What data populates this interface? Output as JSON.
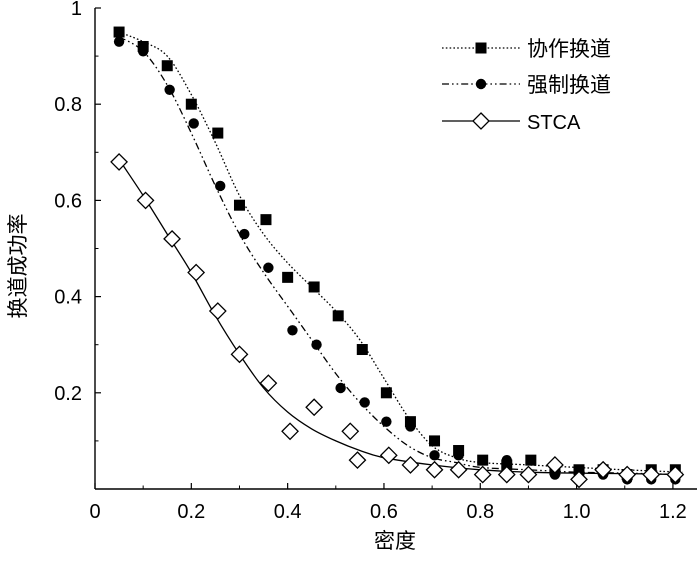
{
  "chart_data": {
    "type": "scatter",
    "title": "",
    "xlabel": "密度",
    "ylabel": "换道成功率",
    "xlim": [
      0,
      1.25
    ],
    "ylim": [
      0,
      1
    ],
    "xticks": [
      0,
      0.2,
      0.4,
      0.6,
      0.8,
      1.0,
      1.2
    ],
    "xtick_labels": [
      "0",
      "0.2",
      "0.4",
      "0.6",
      "0.8",
      "1.0",
      "1.2"
    ],
    "yticks": [
      0.2,
      0.4,
      0.6,
      0.8,
      1
    ],
    "ytick_labels": [
      "0.2",
      "0.4",
      "0.6",
      "0.8",
      "1"
    ],
    "grid": false,
    "legend_position": "top-right",
    "series": [
      {
        "name": "协作换道",
        "marker": "filled-square",
        "line_style": "dotted",
        "points": [
          [
            0.05,
            0.95
          ],
          [
            0.1,
            0.92
          ],
          [
            0.15,
            0.88
          ],
          [
            0.2,
            0.8
          ],
          [
            0.255,
            0.74
          ],
          [
            0.3,
            0.59
          ],
          [
            0.355,
            0.56
          ],
          [
            0.4,
            0.44
          ],
          [
            0.455,
            0.42
          ],
          [
            0.505,
            0.36
          ],
          [
            0.555,
            0.29
          ],
          [
            0.605,
            0.2
          ],
          [
            0.655,
            0.14
          ],
          [
            0.705,
            0.1
          ],
          [
            0.755,
            0.08
          ],
          [
            0.805,
            0.06
          ],
          [
            0.855,
            0.05
          ],
          [
            0.905,
            0.06
          ],
          [
            0.955,
            0.04
          ],
          [
            1.005,
            0.04
          ],
          [
            1.055,
            0.04
          ],
          [
            1.105,
            0.03
          ],
          [
            1.155,
            0.04
          ],
          [
            1.205,
            0.04
          ]
        ],
        "curve": [
          [
            0.05,
            0.95
          ],
          [
            0.1,
            0.93
          ],
          [
            0.15,
            0.9
          ],
          [
            0.2,
            0.82
          ],
          [
            0.25,
            0.72
          ],
          [
            0.3,
            0.61
          ],
          [
            0.35,
            0.53
          ],
          [
            0.4,
            0.47
          ],
          [
            0.45,
            0.42
          ],
          [
            0.5,
            0.37
          ],
          [
            0.55,
            0.31
          ],
          [
            0.6,
            0.23
          ],
          [
            0.65,
            0.15
          ],
          [
            0.7,
            0.09
          ],
          [
            0.75,
            0.065
          ],
          [
            0.8,
            0.055
          ],
          [
            0.9,
            0.05
          ],
          [
            1.0,
            0.045
          ],
          [
            1.1,
            0.04
          ],
          [
            1.22,
            0.035
          ]
        ]
      },
      {
        "name": "强制换道",
        "marker": "filled-circle",
        "line_style": "dash-dot-dot",
        "points": [
          [
            0.05,
            0.93
          ],
          [
            0.1,
            0.91
          ],
          [
            0.155,
            0.83
          ],
          [
            0.205,
            0.76
          ],
          [
            0.26,
            0.63
          ],
          [
            0.31,
            0.53
          ],
          [
            0.36,
            0.46
          ],
          [
            0.41,
            0.33
          ],
          [
            0.46,
            0.3
          ],
          [
            0.51,
            0.21
          ],
          [
            0.56,
            0.18
          ],
          [
            0.605,
            0.14
          ],
          [
            0.655,
            0.13
          ],
          [
            0.705,
            0.07
          ],
          [
            0.755,
            0.07
          ],
          [
            0.805,
            0.03
          ],
          [
            0.855,
            0.06
          ],
          [
            0.905,
            0.06
          ],
          [
            0.955,
            0.03
          ],
          [
            1.005,
            0.03
          ],
          [
            1.055,
            0.03
          ],
          [
            1.105,
            0.02
          ],
          [
            1.155,
            0.02
          ],
          [
            1.205,
            0.02
          ]
        ],
        "curve": [
          [
            0.05,
            0.94
          ],
          [
            0.1,
            0.91
          ],
          [
            0.15,
            0.84
          ],
          [
            0.2,
            0.74
          ],
          [
            0.25,
            0.63
          ],
          [
            0.3,
            0.53
          ],
          [
            0.35,
            0.45
          ],
          [
            0.4,
            0.38
          ],
          [
            0.45,
            0.31
          ],
          [
            0.5,
            0.24
          ],
          [
            0.55,
            0.18
          ],
          [
            0.6,
            0.13
          ],
          [
            0.65,
            0.09
          ],
          [
            0.7,
            0.065
          ],
          [
            0.75,
            0.055
          ],
          [
            0.8,
            0.045
          ],
          [
            0.9,
            0.04
          ],
          [
            1.0,
            0.035
          ],
          [
            1.1,
            0.033
          ],
          [
            1.22,
            0.03
          ]
        ]
      },
      {
        "name": "STCA",
        "marker": "open-diamond",
        "line_style": "solid",
        "points": [
          [
            0.05,
            0.68
          ],
          [
            0.105,
            0.6
          ],
          [
            0.16,
            0.52
          ],
          [
            0.21,
            0.45
          ],
          [
            0.255,
            0.37
          ],
          [
            0.3,
            0.28
          ],
          [
            0.36,
            0.22
          ],
          [
            0.405,
            0.12
          ],
          [
            0.455,
            0.17
          ],
          [
            0.53,
            0.12
          ],
          [
            0.545,
            0.06
          ],
          [
            0.61,
            0.07
          ],
          [
            0.655,
            0.05
          ],
          [
            0.705,
            0.04
          ],
          [
            0.755,
            0.04
          ],
          [
            0.805,
            0.03
          ],
          [
            0.855,
            0.03
          ],
          [
            0.9,
            0.03
          ],
          [
            0.955,
            0.05
          ],
          [
            1.005,
            0.02
          ],
          [
            1.055,
            0.04
          ],
          [
            1.105,
            0.03
          ],
          [
            1.155,
            0.03
          ],
          [
            1.205,
            0.03
          ]
        ],
        "curve": [
          [
            0.05,
            0.685
          ],
          [
            0.1,
            0.61
          ],
          [
            0.15,
            0.53
          ],
          [
            0.2,
            0.45
          ],
          [
            0.25,
            0.36
          ],
          [
            0.3,
            0.28
          ],
          [
            0.35,
            0.21
          ],
          [
            0.4,
            0.16
          ],
          [
            0.45,
            0.125
          ],
          [
            0.5,
            0.1
          ],
          [
            0.55,
            0.08
          ],
          [
            0.6,
            0.065
          ],
          [
            0.7,
            0.05
          ],
          [
            0.8,
            0.04
          ],
          [
            0.9,
            0.035
          ],
          [
            1.0,
            0.033
          ],
          [
            1.1,
            0.032
          ],
          [
            1.22,
            0.03
          ]
        ]
      }
    ]
  },
  "colors": {
    "ink": "#000000",
    "background": "#ffffff"
  }
}
